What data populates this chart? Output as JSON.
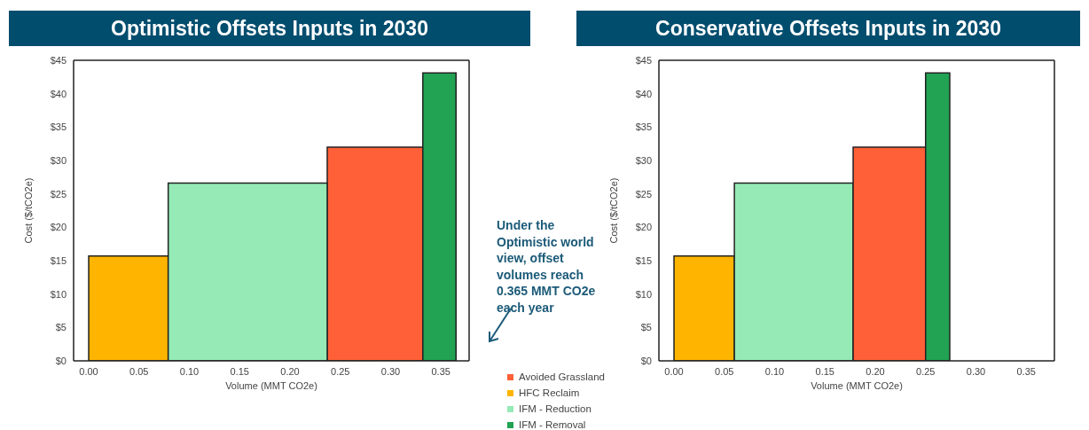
{
  "chart_data": [
    {
      "type": "histogram",
      "title": "Optimistic Offsets Inputs in 2030",
      "xlabel": "Volume (MMT CO2e)",
      "ylabel": "Cost ($/tCO2e)",
      "legend": "bottom right",
      "annotations": [
        "Under the Optimistic world view, offset volumes reach 0.365 MMT CO2e each year"
      ],
      "bins": [
        0,
        0.079,
        0.237,
        0.332,
        0.365
      ],
      "series": [
        {
          "name": "Avoided Grassland",
          "color": "#ff6038",
          "values": [
            null,
            null,
            32.0,
            null
          ]
        },
        {
          "name": "HFC Reclaim",
          "color": "#ffb500",
          "values": [
            15.7,
            null,
            null,
            null
          ]
        },
        {
          "name": "IFM - Reduction",
          "color": "#95eab6",
          "values": [
            null,
            26.6,
            null,
            null
          ]
        },
        {
          "name": "IFM - Removal",
          "color": "#21a353",
          "values": [
            null,
            null,
            null,
            43.1
          ]
        }
      ],
      "xlim": [
        -0.015,
        0.378
      ],
      "ylim": [
        0,
        45
      ],
      "xticks": [
        {
          "value": 0,
          "label": "0.00"
        },
        {
          "value": 0.05,
          "label": "0.05"
        },
        {
          "value": 0.1,
          "label": "0.10"
        },
        {
          "value": 0.15,
          "label": "0.15"
        },
        {
          "value": 0.2,
          "label": "0.20"
        },
        {
          "value": 0.25,
          "label": "0.25"
        },
        {
          "value": 0.3,
          "label": "0.30"
        },
        {
          "value": 0.35,
          "label": "0.35"
        }
      ],
      "yticks": [
        {
          "value": 0,
          "label": "$0"
        },
        {
          "value": 5,
          "label": "$5"
        },
        {
          "value": 10,
          "label": "$10"
        },
        {
          "value": 15,
          "label": "$15"
        },
        {
          "value": 20,
          "label": "$20"
        },
        {
          "value": 25,
          "label": "$25"
        },
        {
          "value": 30,
          "label": "$30"
        },
        {
          "value": 35,
          "label": "$35"
        },
        {
          "value": 40,
          "label": "$40"
        },
        {
          "value": 45,
          "label": "$45"
        }
      ]
    },
    {
      "type": "histogram",
      "title": "Conservative Offsets Inputs in 2030",
      "xlabel": "Volume (MMT CO2e)",
      "ylabel": "Cost ($/tCO2e)",
      "bins": [
        0,
        0.06,
        0.178,
        0.25,
        0.274
      ],
      "values": [
        15.7,
        26.6,
        32.0,
        43.1
      ],
      "colors": [
        "#ffb500",
        "#95eab6",
        "#ff6038",
        "#21a353"
      ],
      "xlim": [
        -0.015,
        0.378
      ],
      "ylim": [
        0,
        45
      ],
      "xticks": [
        {
          "value": 0,
          "label": "0.00"
        },
        {
          "value": 0.05,
          "label": "0.05"
        },
        {
          "value": 0.1,
          "label": "0.10"
        },
        {
          "value": 0.15,
          "label": "0.15"
        },
        {
          "value": 0.2,
          "label": "0.20"
        },
        {
          "value": 0.25,
          "label": "0.25"
        },
        {
          "value": 0.3,
          "label": "0.30"
        },
        {
          "value": 0.35,
          "label": "0.35"
        }
      ],
      "yticks": [
        {
          "value": 0,
          "label": "$0"
        },
        {
          "value": 5,
          "label": "$5"
        },
        {
          "value": 10,
          "label": "$10"
        },
        {
          "value": 15,
          "label": "$15"
        },
        {
          "value": 20,
          "label": "$20"
        },
        {
          "value": 25,
          "label": "$25"
        },
        {
          "value": 30,
          "label": "$30"
        },
        {
          "value": 35,
          "label": "$35"
        },
        {
          "value": 40,
          "label": "$40"
        },
        {
          "value": 45,
          "label": "$45"
        }
      ]
    }
  ]
}
